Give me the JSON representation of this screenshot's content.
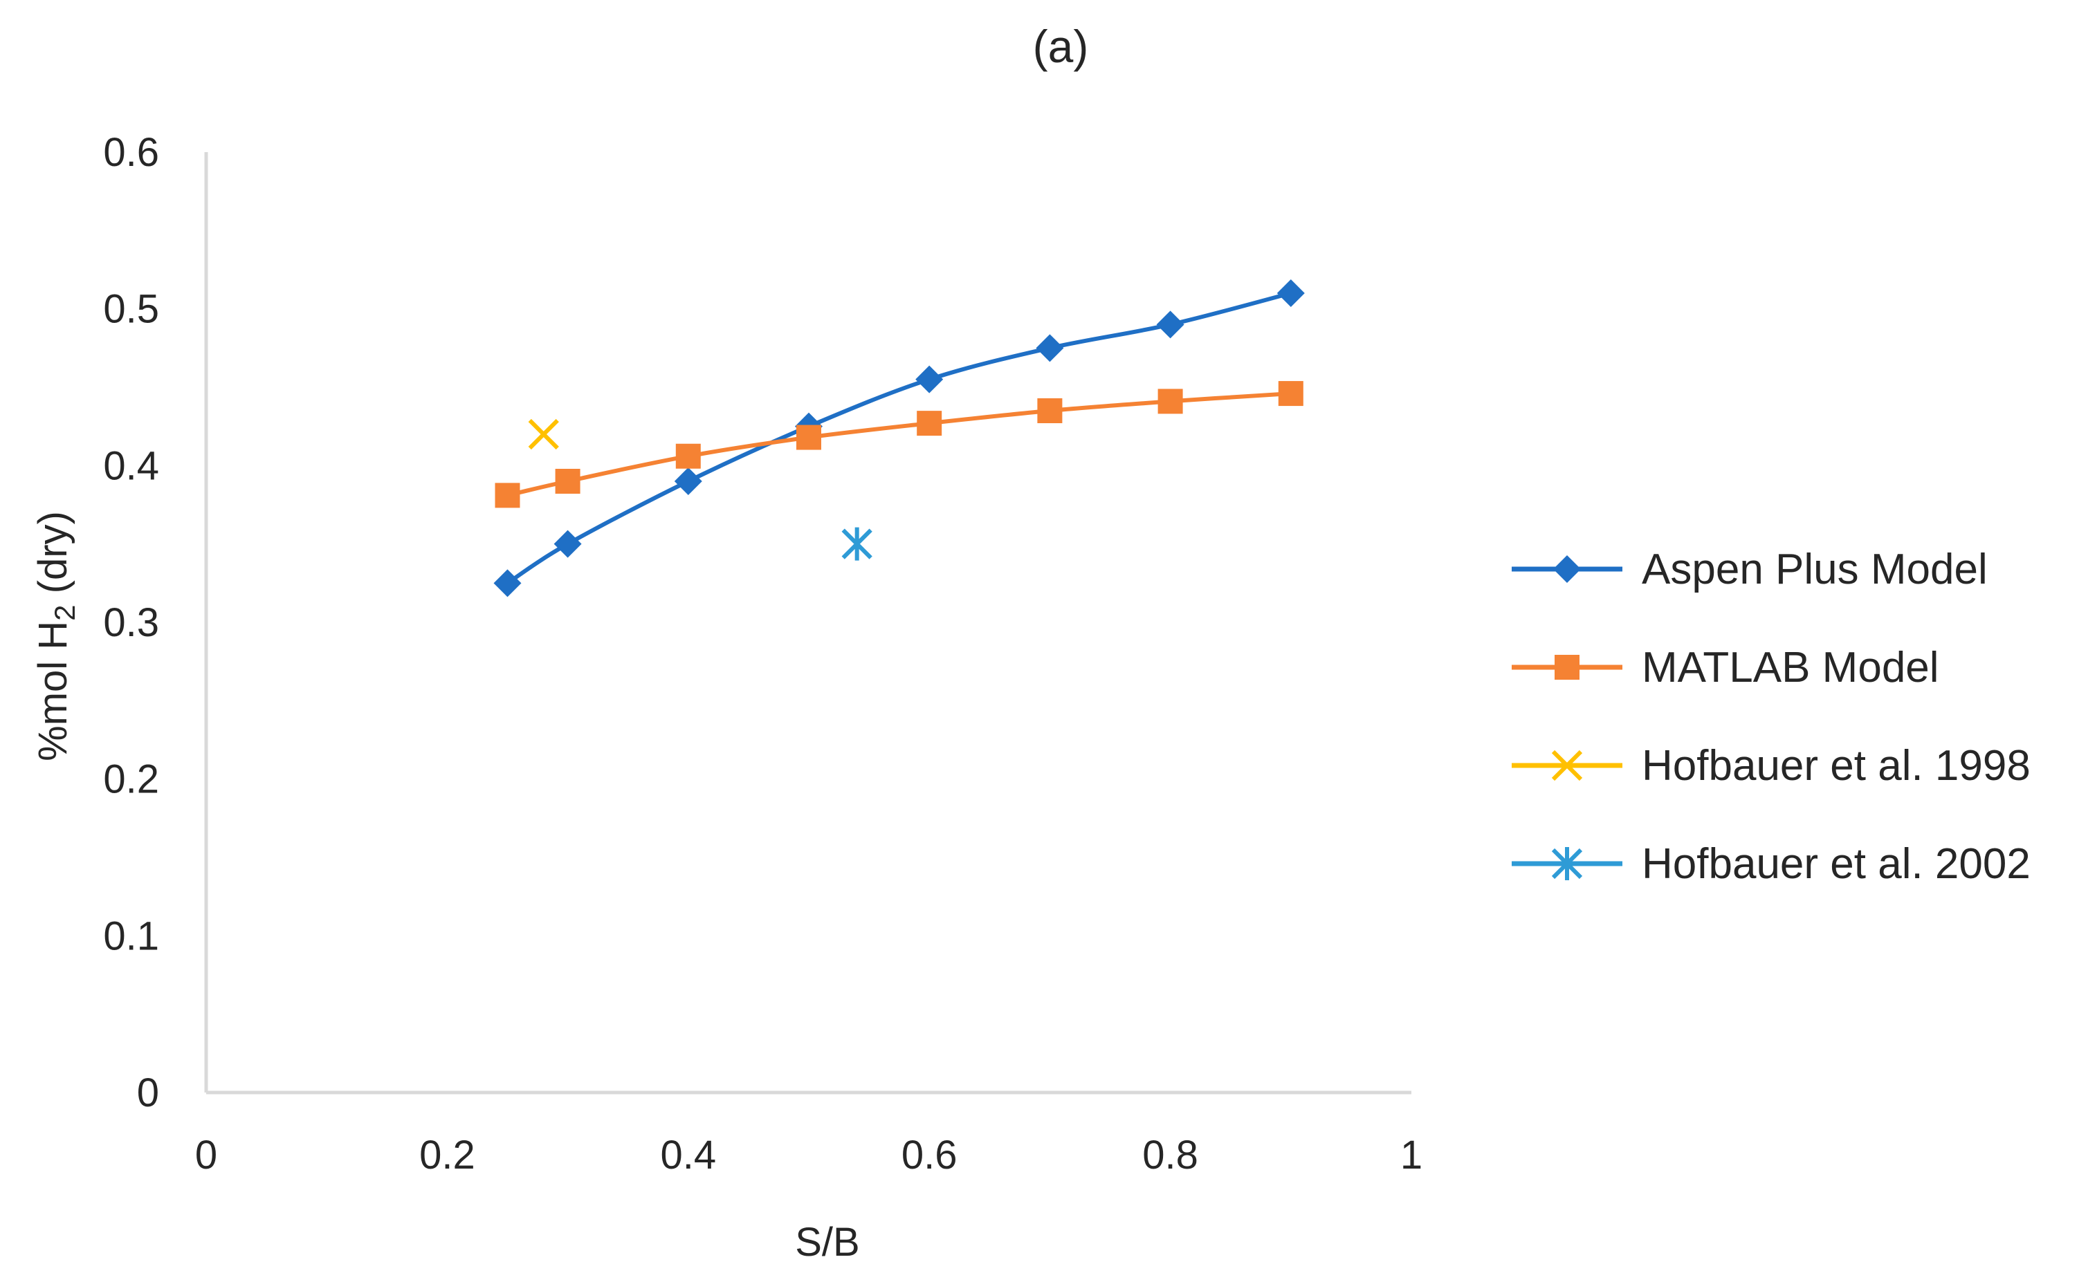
{
  "chart_data": {
    "type": "line",
    "title": "(a)",
    "xlabel": "S/B",
    "ylabel": {
      "prefix": "%mol H",
      "subscript": "2",
      "suffix": " (dry)"
    },
    "xlim": [
      0,
      1
    ],
    "ylim": [
      0,
      0.6
    ],
    "x_ticks": [
      0,
      0.2,
      0.4,
      0.6,
      0.8,
      1
    ],
    "x_tick_labels": [
      "0",
      "0.2",
      "0.4",
      "0.6",
      "0.8",
      "1"
    ],
    "y_ticks": [
      0,
      0.1,
      0.2,
      0.3,
      0.4,
      0.5,
      0.6
    ],
    "y_tick_labels": [
      "0",
      "0.1",
      "0.2",
      "0.3",
      "0.4",
      "0.5",
      "0.6"
    ],
    "grid": false,
    "legend_position": "right",
    "series": [
      {
        "name": "Aspen Plus Model",
        "color": "#1f6fc5",
        "marker": "diamond",
        "line": true,
        "points": [
          [
            0.25,
            0.325
          ],
          [
            0.3,
            0.35
          ],
          [
            0.4,
            0.39
          ],
          [
            0.5,
            0.425
          ],
          [
            0.6,
            0.455
          ],
          [
            0.7,
            0.475
          ],
          [
            0.8,
            0.49
          ],
          [
            0.9,
            0.51
          ]
        ]
      },
      {
        "name": "MATLAB Model",
        "color": "#f58233",
        "marker": "square",
        "line": true,
        "points": [
          [
            0.25,
            0.381
          ],
          [
            0.3,
            0.39
          ],
          [
            0.4,
            0.406
          ],
          [
            0.5,
            0.418
          ],
          [
            0.6,
            0.427
          ],
          [
            0.7,
            0.435
          ],
          [
            0.8,
            0.441
          ],
          [
            0.9,
            0.446
          ]
        ]
      },
      {
        "name": "Hofbauer et al. 1998",
        "color": "#ffc000",
        "marker": "x",
        "line": false,
        "points": [
          [
            0.28,
            0.42
          ]
        ]
      },
      {
        "name": "Hofbauer et al. 2002",
        "color": "#2e9bd6",
        "marker": "star",
        "line": false,
        "points": [
          [
            0.54,
            0.35
          ]
        ]
      }
    ]
  }
}
